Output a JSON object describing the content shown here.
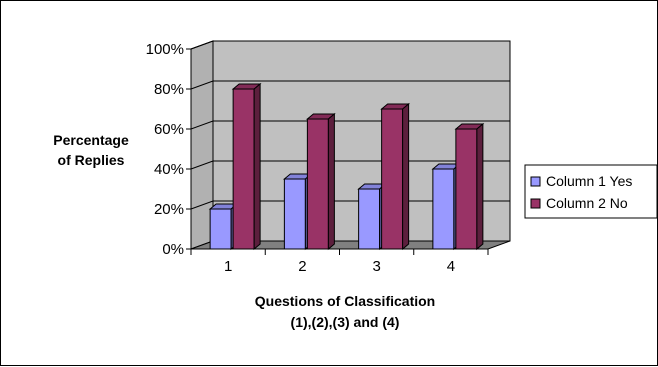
{
  "chart_data": {
    "type": "bar",
    "three_d": true,
    "categories": [
      "1",
      "2",
      "3",
      "4"
    ],
    "series": [
      {
        "name": "Column 1 Yes",
        "values": [
          20,
          35,
          30,
          40
        ],
        "color": "#9999ff"
      },
      {
        "name": "Column 2 No",
        "values": [
          80,
          65,
          70,
          60
        ],
        "color": "#993366"
      }
    ],
    "ylabel_lines": [
      "Percentage",
      "of Replies"
    ],
    "xlabel_lines": [
      "Questions of Classification",
      "(1),(2),(3) and (4)"
    ],
    "y_ticks": [
      "0%",
      "20%",
      "40%",
      "60%",
      "80%",
      "100%"
    ],
    "ylim": [
      0,
      100
    ],
    "wall_color": "#c0c0c0",
    "floor_color": "#808080",
    "grid": true,
    "legend_position": "right"
  }
}
